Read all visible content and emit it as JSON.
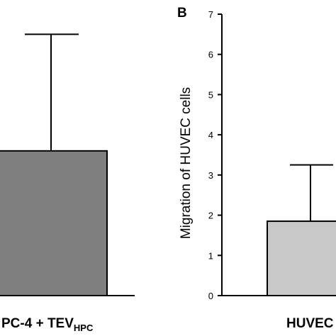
{
  "chart_data": [
    {
      "type": "bar",
      "panel": "",
      "categories": [
        "PC-4 + TEVHPC"
      ],
      "category_label_main": "PC-4 + TEV",
      "category_label_sub": "HPC",
      "values": [
        3.6
      ],
      "error_upper": [
        6.5
      ],
      "colors": {
        "bar": "#7f7f7f"
      },
      "xlabel": "",
      "ylabel": "",
      "ylim": [
        0,
        7
      ]
    },
    {
      "type": "bar",
      "panel": "B",
      "categories": [
        "HUVEC"
      ],
      "category_label_main": "HUVEC",
      "values": [
        1.85
      ],
      "error_upper": [
        3.25
      ],
      "colors": {
        "bar": "#c8c8c8"
      },
      "xlabel": "",
      "ylabel": "Migration of HUVEC cells",
      "yticks": [
        "0",
        "1",
        "2",
        "3",
        "4",
        "5",
        "6",
        "7"
      ],
      "ylim": [
        0,
        7
      ]
    }
  ]
}
